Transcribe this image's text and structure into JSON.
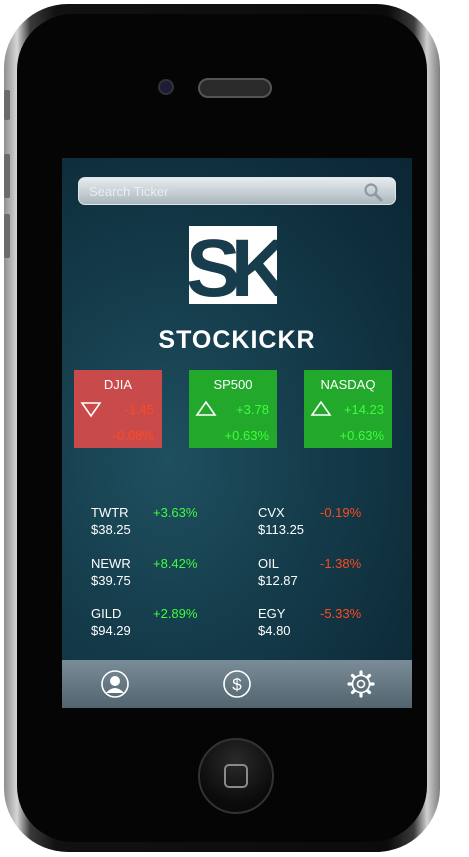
{
  "search": {
    "placeholder": "Search Ticker"
  },
  "app": {
    "logo_text": "SK",
    "title": "STOCKICKR"
  },
  "indices": [
    {
      "name": "DJIA",
      "change": "-1.45",
      "percent": "-0.08%",
      "direction": "down"
    },
    {
      "name": "SP500",
      "change": "+3.78",
      "percent": "+0.63%",
      "direction": "up"
    },
    {
      "name": "NASDAQ",
      "change": "+14.23",
      "percent": "+0.63%",
      "direction": "up"
    }
  ],
  "stocks": [
    {
      "ticker": "TWTR",
      "price": "$38.25",
      "percent": "+3.63%"
    },
    {
      "ticker": "CVX",
      "price": "$113.25",
      "percent": "-0.19%"
    },
    {
      "ticker": "NEWR",
      "price": "$39.75",
      "percent": "+8.42%"
    },
    {
      "ticker": "OIL",
      "price": "$12.87",
      "percent": "-1.38%"
    },
    {
      "ticker": "GILD",
      "price": "$94.29",
      "percent": "+2.89%"
    },
    {
      "ticker": "EGY",
      "price": "$4.80",
      "percent": "-5.33%"
    }
  ],
  "tabs": [
    {
      "icon": "profile-icon"
    },
    {
      "icon": "dollar-icon"
    },
    {
      "icon": "gear-icon"
    }
  ],
  "colors": {
    "positive": "#3bff3b",
    "negative": "#ff4a1e",
    "card_down": "#c84a4a",
    "card_up": "#22a82a"
  }
}
